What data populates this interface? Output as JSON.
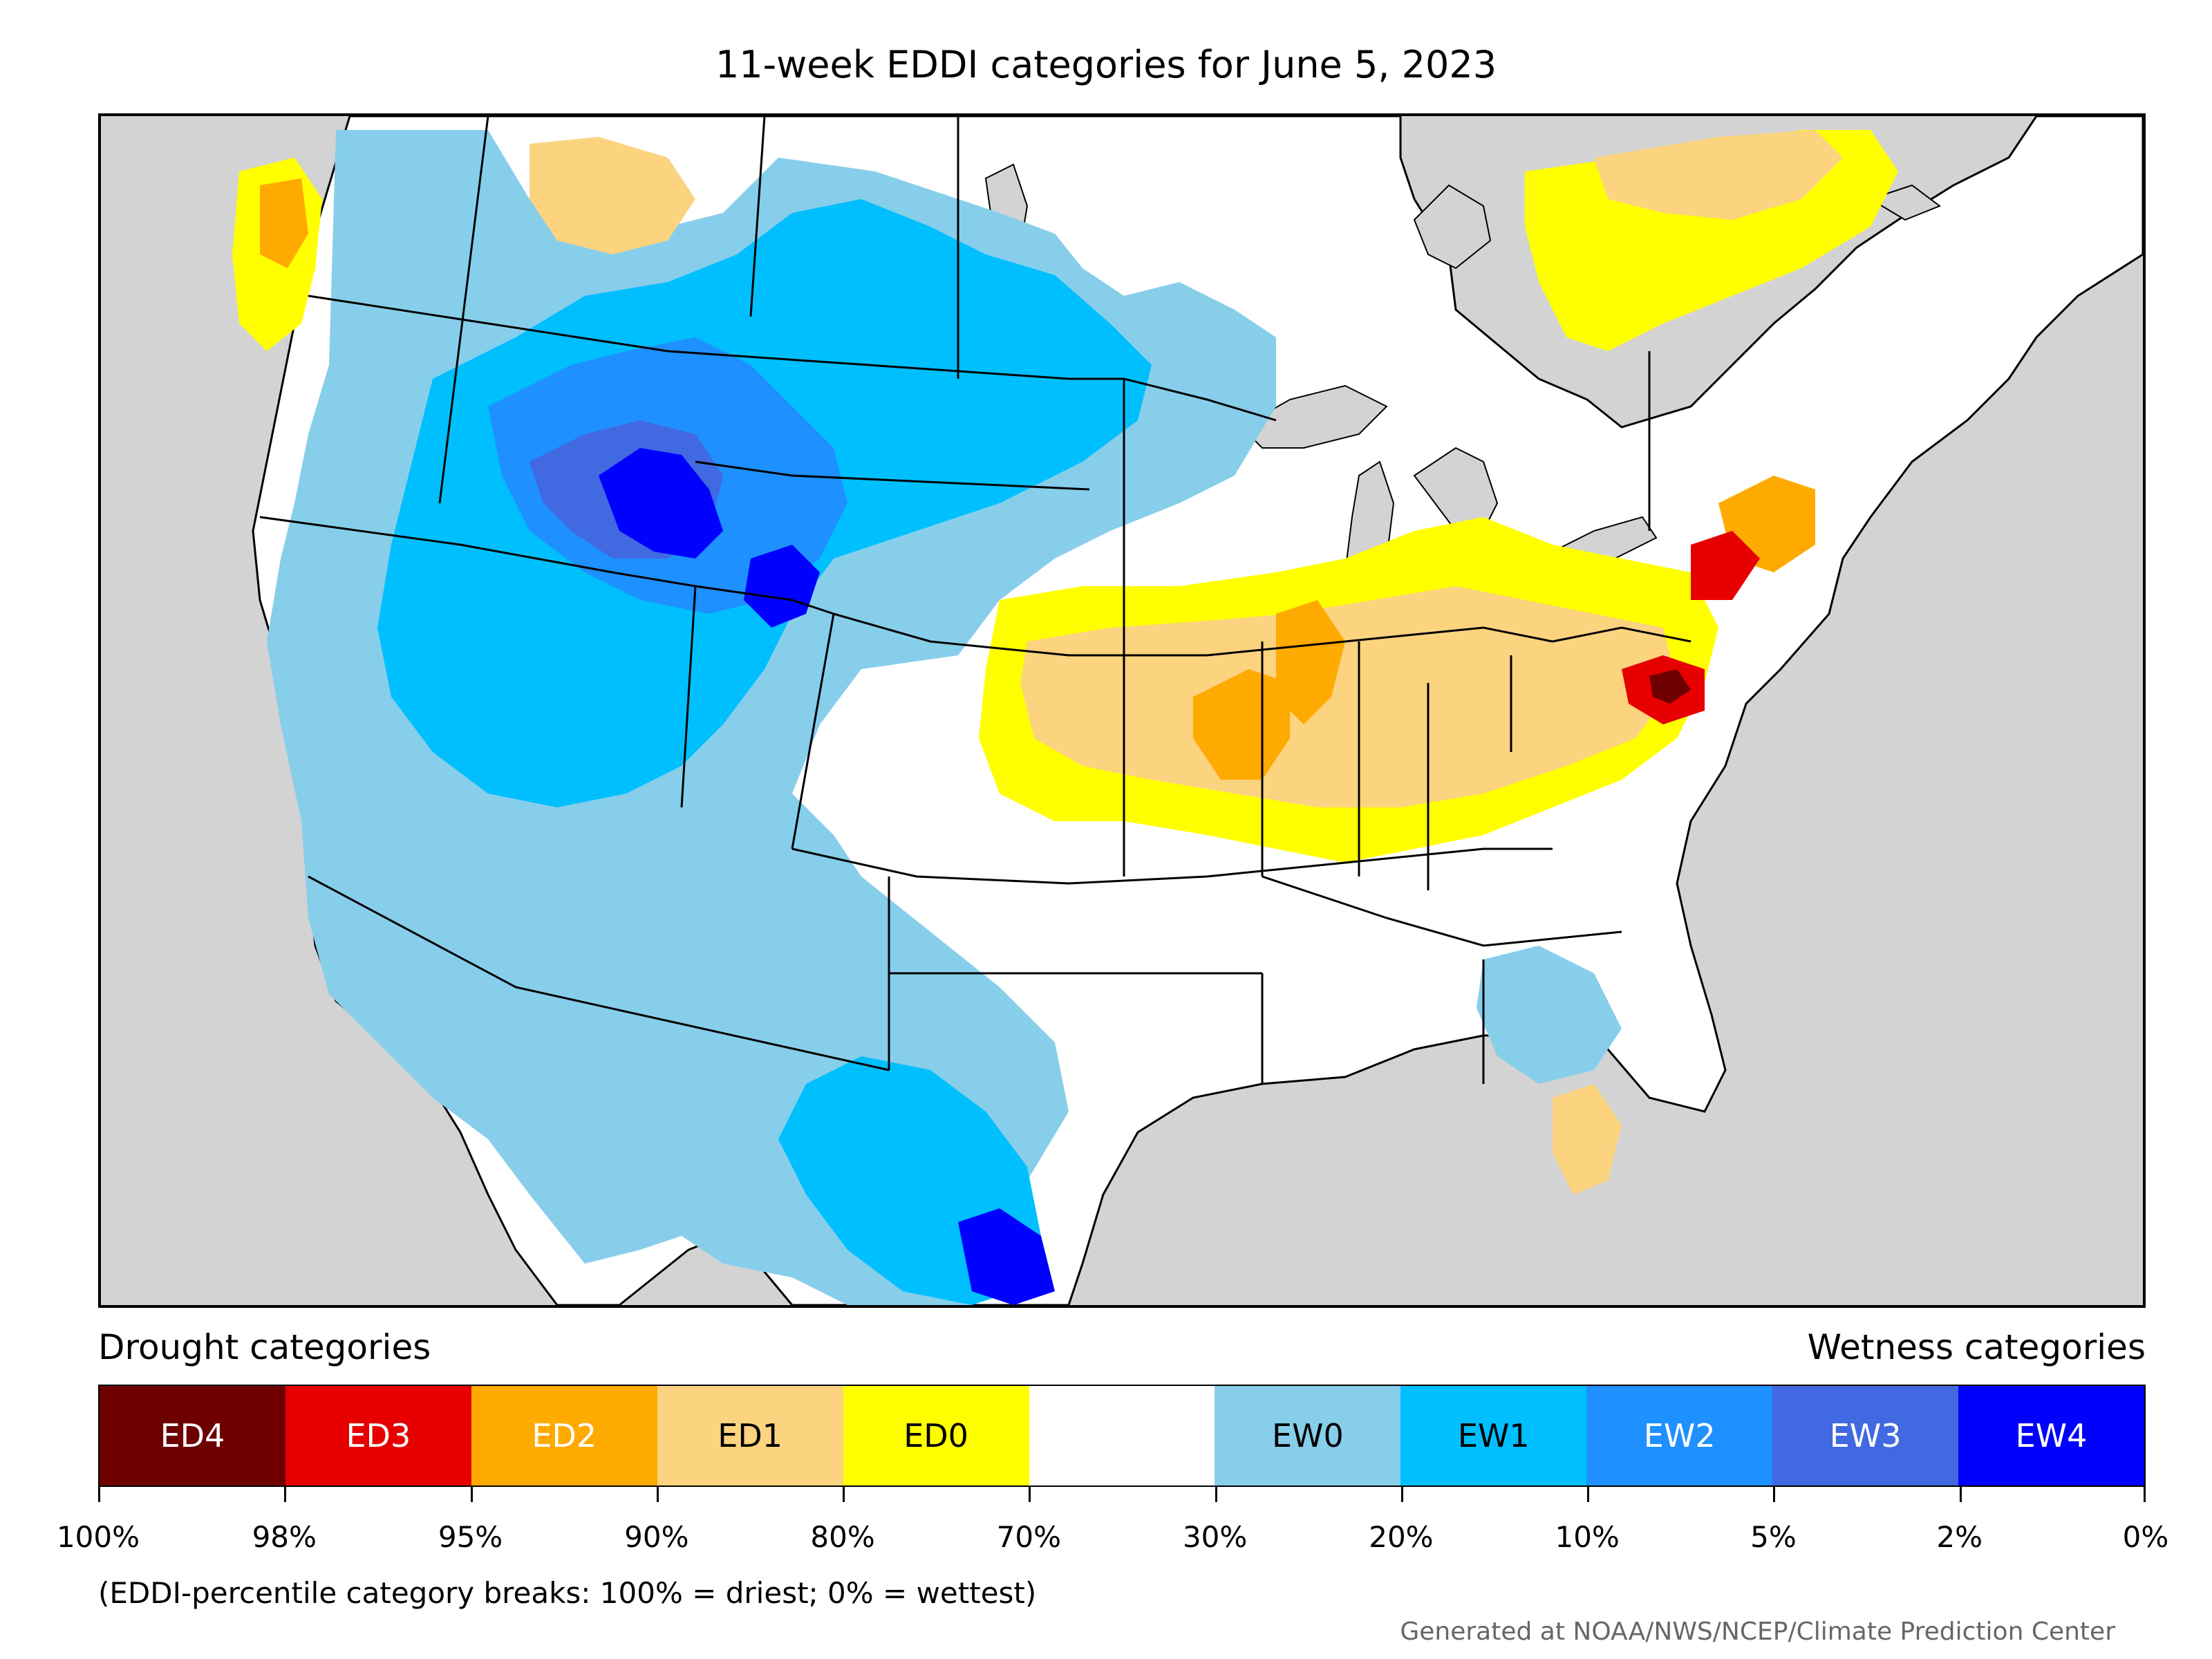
{
  "title": "11-week EDDI categories for June 5, 2023",
  "legend": {
    "drought_heading": "Drought categories",
    "wetness_heading": "Wetness categories",
    "categories": [
      {
        "label": "ED4",
        "color": "#6e0000",
        "text_color": "#ffffff"
      },
      {
        "label": "ED3",
        "color": "#e60000",
        "text_color": "#ffffff"
      },
      {
        "label": "ED2",
        "color": "#ffaa00",
        "text_color": "#ffffff"
      },
      {
        "label": "ED1",
        "color": "#fcd37f",
        "text_color": "#000000"
      },
      {
        "label": "ED0",
        "color": "#ffff00",
        "text_color": "#000000"
      },
      {
        "label": "",
        "color": "#ffffff",
        "text_color": "#000000"
      },
      {
        "label": "EW0",
        "color": "#87ceeb",
        "text_color": "#000000"
      },
      {
        "label": "EW1",
        "color": "#00bfff",
        "text_color": "#000000"
      },
      {
        "label": "EW2",
        "color": "#1e90ff",
        "text_color": "#ffffff"
      },
      {
        "label": "EW3",
        "color": "#4169e1",
        "text_color": "#ffffff"
      },
      {
        "label": "EW4",
        "color": "#0000ff",
        "text_color": "#ffffff"
      }
    ],
    "ticks": [
      "100%",
      "98%",
      "95%",
      "90%",
      "80%",
      "70%",
      "30%",
      "20%",
      "10%",
      "5%",
      "2%",
      "0%"
    ],
    "note": "(EDDI-percentile category breaks: 100% = driest; 0% = wettest)"
  },
  "credit": "Generated at NOAA/NWS/NCEP/Climate Prediction Center",
  "map": {
    "ocean_color": "#d3d3d3",
    "land_color": "#ffffff",
    "border_color": "#000000"
  }
}
